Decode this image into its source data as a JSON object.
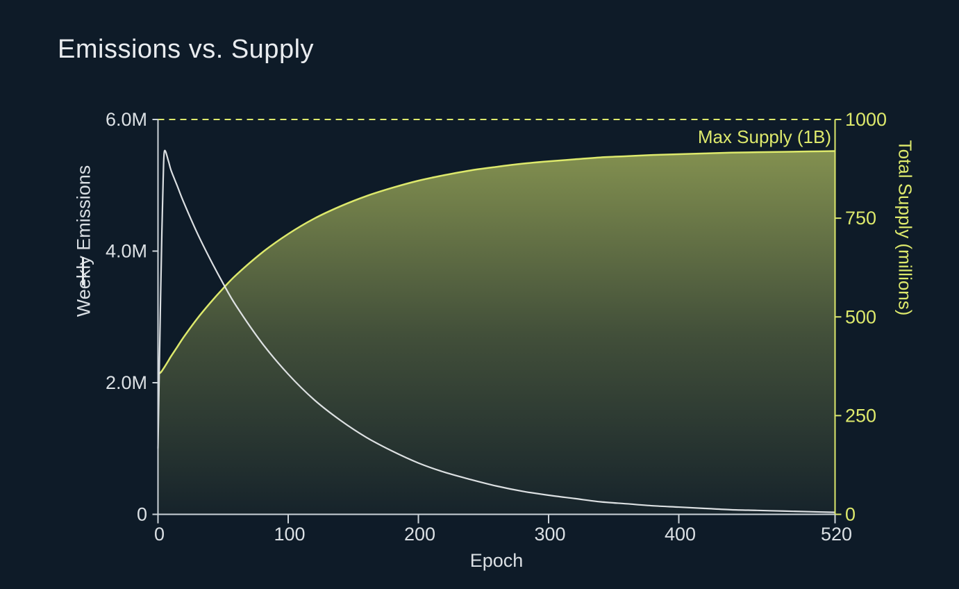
{
  "chart_data": {
    "type": "line+area dual-axis",
    "title": "Emissions vs. Supply",
    "xlabel": "Epoch",
    "grid": false,
    "legend": "none",
    "background": "#0e1b28",
    "x_axis": {
      "tick_labels": [
        "0",
        "100",
        "200",
        "300",
        "400",
        "520"
      ],
      "tick_values": [
        0,
        100,
        200,
        300,
        400,
        520
      ],
      "lim": [
        0,
        520
      ],
      "color": "#ccd3d9"
    },
    "left_axis": {
      "label": "Weekly Emissions",
      "tick_labels": [
        "0",
        "2.0M",
        "4.0M",
        "6.0M"
      ],
      "tick_values": [
        0,
        2000000,
        4000000,
        6000000
      ],
      "lim": [
        0,
        6000000
      ],
      "color": "#ccd3d9",
      "text_color": "#dbe0e4"
    },
    "right_axis": {
      "label": "Total Supply (millions)",
      "tick_labels": [
        "0",
        "250",
        "500",
        "750",
        "1000"
      ],
      "tick_values": [
        0,
        250,
        500,
        750,
        1000
      ],
      "lim": [
        0,
        1000
      ],
      "color": "#dde96c",
      "text_color": "#dde96c"
    },
    "annotation": {
      "label": "Max Supply (1B)",
      "axis": "right",
      "value": 1000,
      "line_style": "dashed",
      "color": "#dde96c"
    },
    "x": [
      0,
      1,
      2,
      3,
      4,
      5,
      8,
      10,
      15,
      20,
      30,
      40,
      50,
      60,
      80,
      100,
      120,
      140,
      160,
      180,
      200,
      220,
      240,
      260,
      280,
      300,
      320,
      340,
      360,
      380,
      400,
      420,
      440,
      460,
      480,
      500,
      520
    ],
    "series": [
      {
        "name": "Weekly Emissions",
        "axis": "left",
        "type": "line",
        "color": "#e7eaec",
        "values": [
          1000000,
          2200000,
          3300000,
          4300000,
          5100000,
          5520000,
          5370000,
          5230000,
          4980000,
          4730000,
          4280000,
          3880000,
          3510000,
          3170000,
          2600000,
          2130000,
          1740000,
          1430000,
          1170000,
          960000,
          780000,
          640000,
          530000,
          430000,
          350000,
          290000,
          240000,
          190000,
          160000,
          130000,
          110000,
          90000,
          70000,
          60000,
          50000,
          40000,
          30000
        ]
      },
      {
        "name": "Total Supply",
        "axis": "right",
        "type": "area",
        "color": "#dde96c",
        "fill_gradient": [
          "rgba(220,234,110,0.62)",
          "rgba(220,234,110,0.25)",
          "rgba(220,234,110,0.04)"
        ],
        "values": [
          355,
          357,
          359,
          363,
          368,
          373,
          389,
          400,
          425,
          450,
          495,
          535,
          572,
          606,
          663,
          710,
          749,
          780,
          806,
          827,
          845,
          859,
          871,
          880,
          888,
          894,
          899,
          904,
          907,
          910,
          912,
          914,
          916,
          917,
          918,
          919,
          920
        ]
      }
    ]
  }
}
